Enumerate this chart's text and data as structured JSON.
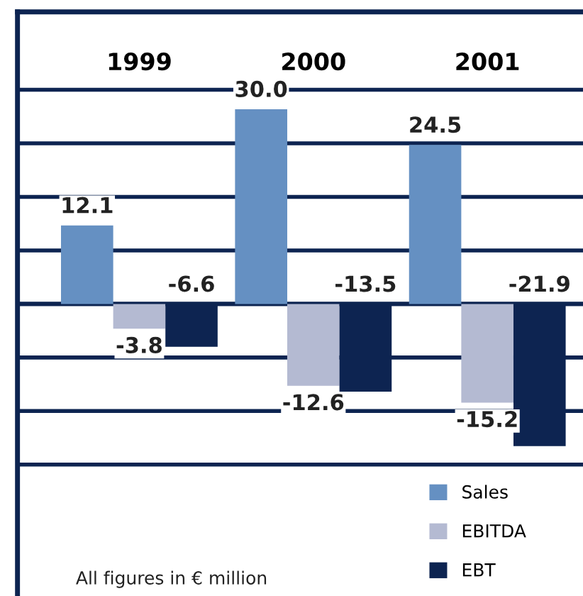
{
  "chart_data": {
    "type": "bar",
    "categories": [
      "1999",
      "2000",
      "2001"
    ],
    "series": [
      {
        "name": "Sales",
        "color": "#6590c2",
        "values": [
          12.1,
          30.0,
          24.5
        ],
        "value_labels": [
          "12.1",
          "30.0",
          "24.5"
        ]
      },
      {
        "name": "EBITDA",
        "color": "#b4bad2",
        "values": [
          -3.8,
          -12.6,
          -15.2
        ],
        "value_labels": [
          "-3.8",
          "-12.6",
          "-15.2"
        ]
      },
      {
        "name": "EBT",
        "color": "#0d2451",
        "values": [
          -6.6,
          -13.5,
          -21.9
        ],
        "value_labels": [
          "-6.6",
          "-13.5",
          "-21.9"
        ]
      }
    ],
    "ylim": [
      -45,
      45
    ],
    "yticks": [
      {
        "value": -24.75,
        "label": null
      },
      {
        "value": -16.5,
        "label": null
      },
      {
        "value": -8.25,
        "label": null
      },
      {
        "value": 0,
        "label": null
      },
      {
        "value": 8.25,
        "label": null
      },
      {
        "value": 16.5,
        "label": null
      },
      {
        "value": 24.75,
        "label": null
      },
      {
        "value": 33,
        "label": null
      }
    ],
    "grid": "y",
    "legend": "bottom right",
    "tick_labels": "x",
    "annotations": [
      "All figures in € million"
    ]
  }
}
